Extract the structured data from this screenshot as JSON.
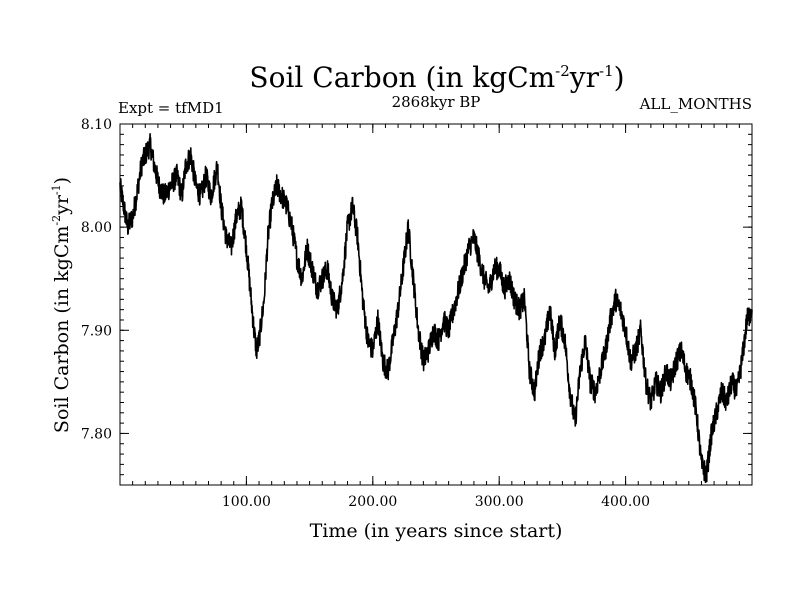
{
  "chart_data": {
    "type": "line",
    "title": "Soil Carbon (in kgCm",
    "title_sup1": "-2",
    "title_mid": "yr",
    "title_sup2": "-1",
    "title_end": ")",
    "subtitle_left": "Expt = tfMD1",
    "subtitle_center": "2868kyr BP",
    "subtitle_right": "ALL_MONTHS",
    "xlabel": "Time (in years since start)",
    "ylabel_main": "Soil Carbon (in kgCm",
    "ylabel_sup1": "-2",
    "ylabel_mid": "yr",
    "ylabel_sup2": "-1",
    "ylabel_end": ")",
    "xlim": [
      0,
      500
    ],
    "ylim": [
      7.75,
      8.1
    ],
    "xticks": [
      {
        "value": 100,
        "label": "100.00"
      },
      {
        "value": 200,
        "label": "200.00"
      },
      {
        "value": 300,
        "label": "300.00"
      },
      {
        "value": 400,
        "label": "400.00"
      }
    ],
    "yticks": [
      {
        "value": 8.1,
        "label": "8.10"
      },
      {
        "value": 8.0,
        "label": "8.00"
      },
      {
        "value": 7.9,
        "label": "7.90"
      },
      {
        "value": 7.8,
        "label": "7.80"
      }
    ],
    "series": [
      {
        "name": "Soil Carbon",
        "color": "#000000",
        "x": [
          0,
          3,
          6,
          10,
          13,
          17,
          20,
          24,
          27,
          31,
          35,
          40,
          45,
          49,
          52,
          56,
          60,
          64,
          68,
          72,
          77,
          80,
          84,
          88,
          92,
          96,
          100,
          103,
          106,
          108,
          110,
          114,
          117,
          120,
          124,
          128,
          132,
          136,
          140,
          144,
          148,
          152,
          156,
          160,
          164,
          168,
          172,
          176,
          180,
          184,
          188,
          192,
          196,
          200,
          204,
          208,
          212,
          216,
          220,
          224,
          228,
          232,
          236,
          240,
          244,
          248,
          252,
          256,
          260,
          264,
          268,
          272,
          276,
          280,
          284,
          288,
          292,
          296,
          300,
          304,
          308,
          312,
          316,
          320,
          324,
          328,
          332,
          336,
          340,
          344,
          348,
          352,
          356,
          360,
          364,
          368,
          372,
          376,
          380,
          384,
          388,
          392,
          396,
          400,
          404,
          408,
          412,
          416,
          420,
          424,
          428,
          432,
          436,
          440,
          444,
          448,
          452,
          456,
          460,
          464,
          468,
          472,
          476,
          480,
          484,
          488,
          492,
          496,
          500
        ],
        "values": [
          8.04,
          8.02,
          8.0,
          8.01,
          8.03,
          8.06,
          8.07,
          8.08,
          8.06,
          8.04,
          8.03,
          8.04,
          8.05,
          8.03,
          8.06,
          8.07,
          8.04,
          8.03,
          8.05,
          8.03,
          8.06,
          8.02,
          7.99,
          7.98,
          8.01,
          8.02,
          7.98,
          7.94,
          7.9,
          7.88,
          7.89,
          7.93,
          7.99,
          8.02,
          8.04,
          8.03,
          8.02,
          8.0,
          7.97,
          7.95,
          7.98,
          7.96,
          7.94,
          7.95,
          7.96,
          7.93,
          7.92,
          7.95,
          8.0,
          8.02,
          7.99,
          7.93,
          7.89,
          7.88,
          7.91,
          7.87,
          7.86,
          7.89,
          7.92,
          7.96,
          8.0,
          7.95,
          7.9,
          7.87,
          7.88,
          7.9,
          7.89,
          7.91,
          7.9,
          7.92,
          7.94,
          7.96,
          7.98,
          7.99,
          7.97,
          7.95,
          7.94,
          7.96,
          7.96,
          7.94,
          7.95,
          7.93,
          7.92,
          7.93,
          7.86,
          7.84,
          7.88,
          7.89,
          7.92,
          7.88,
          7.91,
          7.89,
          7.84,
          7.81,
          7.86,
          7.89,
          7.85,
          7.84,
          7.86,
          7.88,
          7.91,
          7.93,
          7.92,
          7.9,
          7.87,
          7.88,
          7.9,
          7.85,
          7.83,
          7.85,
          7.84,
          7.86,
          7.85,
          7.87,
          7.88,
          7.86,
          7.85,
          7.82,
          7.77,
          7.76,
          7.8,
          7.82,
          7.84,
          7.83,
          7.85,
          7.84,
          7.87,
          7.91,
          7.92
        ]
      }
    ]
  }
}
